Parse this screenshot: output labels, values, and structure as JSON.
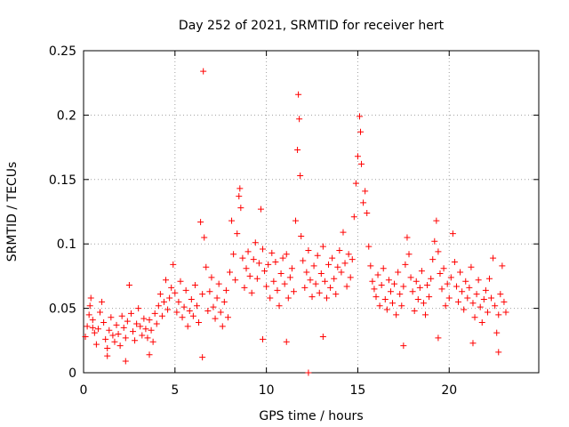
{
  "chart_data": {
    "type": "scatter",
    "title": "Day 252 of 2021, SRMTID for receiver hert",
    "xlabel": "GPS time / hours",
    "ylabel": "SRMTID / TECUs",
    "xlim": [
      0,
      24.9
    ],
    "ylim": [
      0,
      0.25
    ],
    "x_ticks": [
      0,
      5,
      10,
      15,
      20
    ],
    "x_tick_labels": [
      "0",
      "5",
      "10",
      "15",
      "20"
    ],
    "y_ticks": [
      0,
      0.05,
      0.1,
      0.15,
      0.2,
      0.25
    ],
    "y_tick_labels": [
      "0",
      "0.05",
      "0.1",
      "0.15",
      "0.2",
      "0.25"
    ],
    "grid": true,
    "marker": "plus",
    "color": "#ff0000",
    "series": [
      {
        "name": "SRMTID",
        "points": [
          [
            0.1,
            0.028
          ],
          [
            0.2,
            0.036
          ],
          [
            0.3,
            0.045
          ],
          [
            0.35,
            0.052
          ],
          [
            0.4,
            0.058
          ],
          [
            0.5,
            0.041
          ],
          [
            0.6,
            0.031
          ],
          [
            0.7,
            0.022
          ],
          [
            0.8,
            0.034
          ],
          [
            0.9,
            0.047
          ],
          [
            1.0,
            0.055
          ],
          [
            1.1,
            0.039
          ],
          [
            1.2,
            0.026
          ],
          [
            1.3,
            0.019
          ],
          [
            1.4,
            0.033
          ],
          [
            1.5,
            0.043
          ],
          [
            1.6,
            0.029
          ],
          [
            1.7,
            0.024
          ],
          [
            1.8,
            0.037
          ],
          [
            1.9,
            0.03
          ],
          [
            2.0,
            0.021
          ],
          [
            2.1,
            0.044
          ],
          [
            2.2,
            0.035
          ],
          [
            2.3,
            0.027
          ],
          [
            2.4,
            0.04
          ],
          [
            2.5,
            0.068
          ],
          [
            2.6,
            0.046
          ],
          [
            2.7,
            0.032
          ],
          [
            2.8,
            0.025
          ],
          [
            2.9,
            0.038
          ],
          [
            3.0,
            0.05
          ],
          [
            3.1,
            0.036
          ],
          [
            3.2,
            0.029
          ],
          [
            3.3,
            0.042
          ],
          [
            3.4,
            0.034
          ],
          [
            3.5,
            0.027
          ],
          [
            3.6,
            0.041
          ],
          [
            3.7,
            0.033
          ],
          [
            3.8,
            0.024
          ],
          [
            3.9,
            0.046
          ],
          [
            4.0,
            0.038
          ],
          [
            4.1,
            0.052
          ],
          [
            4.2,
            0.061
          ],
          [
            4.3,
            0.044
          ],
          [
            4.4,
            0.055
          ],
          [
            4.5,
            0.072
          ],
          [
            4.6,
            0.049
          ],
          [
            4.7,
            0.058
          ],
          [
            4.8,
            0.066
          ],
          [
            4.9,
            0.084
          ],
          [
            5.0,
            0.062
          ],
          [
            5.1,
            0.047
          ],
          [
            5.2,
            0.055
          ],
          [
            5.3,
            0.071
          ],
          [
            5.4,
            0.043
          ],
          [
            5.5,
            0.051
          ],
          [
            5.6,
            0.064
          ],
          [
            5.7,
            0.036
          ],
          [
            5.8,
            0.048
          ],
          [
            5.9,
            0.057
          ],
          [
            6.0,
            0.044
          ],
          [
            6.1,
            0.068
          ],
          [
            6.2,
            0.052
          ],
          [
            6.3,
            0.039
          ],
          [
            6.4,
            0.117
          ],
          [
            6.5,
            0.061
          ],
          [
            6.55,
            0.234
          ],
          [
            6.6,
            0.105
          ],
          [
            6.7,
            0.082
          ],
          [
            6.8,
            0.048
          ],
          [
            6.9,
            0.063
          ],
          [
            7.0,
            0.074
          ],
          [
            7.1,
            0.051
          ],
          [
            7.2,
            0.042
          ],
          [
            7.3,
            0.058
          ],
          [
            7.4,
            0.069
          ],
          [
            7.5,
            0.047
          ],
          [
            7.6,
            0.036
          ],
          [
            7.7,
            0.055
          ],
          [
            7.8,
            0.064
          ],
          [
            7.9,
            0.043
          ],
          [
            8.0,
            0.078
          ],
          [
            8.1,
            0.118
          ],
          [
            8.2,
            0.092
          ],
          [
            8.3,
            0.072
          ],
          [
            8.4,
            0.108
          ],
          [
            8.5,
            0.137
          ],
          [
            8.55,
            0.143
          ],
          [
            8.6,
            0.128
          ],
          [
            8.7,
            0.089
          ],
          [
            8.8,
            0.066
          ],
          [
            8.9,
            0.081
          ],
          [
            9.0,
            0.094
          ],
          [
            9.1,
            0.075
          ],
          [
            9.2,
            0.062
          ],
          [
            9.3,
            0.088
          ],
          [
            9.4,
            0.101
          ],
          [
            9.5,
            0.073
          ],
          [
            9.6,
            0.085
          ],
          [
            9.7,
            0.127
          ],
          [
            9.8,
            0.096
          ],
          [
            9.9,
            0.079
          ],
          [
            10.0,
            0.067
          ],
          [
            10.1,
            0.084
          ],
          [
            10.2,
            0.058
          ],
          [
            10.3,
            0.093
          ],
          [
            10.4,
            0.071
          ],
          [
            10.5,
            0.086
          ],
          [
            10.6,
            0.064
          ],
          [
            10.7,
            0.052
          ],
          [
            10.8,
            0.077
          ],
          [
            10.9,
            0.089
          ],
          [
            11.0,
            0.069
          ],
          [
            11.1,
            0.092
          ],
          [
            11.2,
            0.058
          ],
          [
            11.3,
            0.074
          ],
          [
            11.4,
            0.081
          ],
          [
            11.5,
            0.063
          ],
          [
            11.6,
            0.118
          ],
          [
            11.7,
            0.173
          ],
          [
            11.75,
            0.216
          ],
          [
            11.8,
            0.197
          ],
          [
            11.85,
            0.153
          ],
          [
            11.9,
            0.106
          ],
          [
            12.0,
            0.087
          ],
          [
            12.1,
            0.066
          ],
          [
            12.2,
            0.078
          ],
          [
            12.3,
            0.095
          ],
          [
            12.4,
            0.072
          ],
          [
            12.5,
            0.059
          ],
          [
            12.6,
            0.083
          ],
          [
            12.7,
            0.069
          ],
          [
            12.8,
            0.091
          ],
          [
            12.9,
            0.062
          ],
          [
            13.0,
            0.077
          ],
          [
            13.1,
            0.098
          ],
          [
            13.2,
            0.071
          ],
          [
            13.3,
            0.058
          ],
          [
            13.4,
            0.084
          ],
          [
            13.5,
            0.066
          ],
          [
            13.6,
            0.089
          ],
          [
            13.7,
            0.073
          ],
          [
            13.8,
            0.061
          ],
          [
            13.9,
            0.082
          ],
          [
            14.0,
            0.095
          ],
          [
            14.1,
            0.078
          ],
          [
            14.2,
            0.109
          ],
          [
            14.3,
            0.085
          ],
          [
            14.4,
            0.067
          ],
          [
            14.5,
            0.092
          ],
          [
            14.6,
            0.074
          ],
          [
            14.7,
            0.088
          ],
          [
            14.8,
            0.121
          ],
          [
            14.9,
            0.147
          ],
          [
            15.0,
            0.168
          ],
          [
            15.1,
            0.199
          ],
          [
            15.15,
            0.187
          ],
          [
            15.2,
            0.162
          ],
          [
            15.3,
            0.132
          ],
          [
            15.4,
            0.141
          ],
          [
            15.5,
            0.124
          ],
          [
            15.6,
            0.098
          ],
          [
            15.7,
            0.083
          ],
          [
            15.8,
            0.071
          ],
          [
            15.9,
            0.065
          ],
          [
            16.0,
            0.059
          ],
          [
            16.1,
            0.076
          ],
          [
            16.2,
            0.052
          ],
          [
            16.3,
            0.068
          ],
          [
            16.4,
            0.081
          ],
          [
            16.5,
            0.057
          ],
          [
            16.6,
            0.049
          ],
          [
            16.7,
            0.072
          ],
          [
            16.8,
            0.063
          ],
          [
            16.9,
            0.054
          ],
          [
            17.0,
            0.069
          ],
          [
            17.1,
            0.045
          ],
          [
            17.2,
            0.078
          ],
          [
            17.3,
            0.061
          ],
          [
            17.4,
            0.052
          ],
          [
            17.5,
            0.067
          ],
          [
            17.6,
            0.084
          ],
          [
            17.7,
            0.105
          ],
          [
            17.8,
            0.092
          ],
          [
            17.9,
            0.074
          ],
          [
            18.0,
            0.063
          ],
          [
            18.1,
            0.048
          ],
          [
            18.2,
            0.071
          ],
          [
            18.3,
            0.057
          ],
          [
            18.4,
            0.066
          ],
          [
            18.5,
            0.079
          ],
          [
            18.6,
            0.054
          ],
          [
            18.7,
            0.045
          ],
          [
            18.8,
            0.068
          ],
          [
            18.9,
            0.059
          ],
          [
            19.0,
            0.073
          ],
          [
            19.1,
            0.088
          ],
          [
            19.2,
            0.102
          ],
          [
            19.3,
            0.118
          ],
          [
            19.4,
            0.094
          ],
          [
            19.5,
            0.077
          ],
          [
            19.6,
            0.065
          ],
          [
            19.7,
            0.081
          ],
          [
            19.8,
            0.052
          ],
          [
            19.9,
            0.069
          ],
          [
            20.0,
            0.058
          ],
          [
            20.1,
            0.074
          ],
          [
            20.2,
            0.108
          ],
          [
            20.3,
            0.086
          ],
          [
            20.4,
            0.067
          ],
          [
            20.5,
            0.055
          ],
          [
            20.6,
            0.078
          ],
          [
            20.7,
            0.063
          ],
          [
            20.8,
            0.049
          ],
          [
            20.9,
            0.071
          ],
          [
            21.0,
            0.058
          ],
          [
            21.1,
            0.066
          ],
          [
            21.2,
            0.082
          ],
          [
            21.3,
            0.054
          ],
          [
            21.4,
            0.043
          ],
          [
            21.5,
            0.061
          ],
          [
            21.6,
            0.072
          ],
          [
            21.7,
            0.051
          ],
          [
            21.8,
            0.039
          ],
          [
            21.9,
            0.057
          ],
          [
            22.0,
            0.064
          ],
          [
            22.1,
            0.047
          ],
          [
            22.2,
            0.073
          ],
          [
            22.3,
            0.058
          ],
          [
            22.4,
            0.089
          ],
          [
            22.5,
            0.052
          ],
          [
            22.6,
            0.031
          ],
          [
            22.7,
            0.045
          ],
          [
            22.8,
            0.061
          ],
          [
            22.9,
            0.083
          ],
          [
            23.0,
            0.055
          ],
          [
            23.1,
            0.047
          ],
          [
            0.5,
            0.035
          ],
          [
            1.3,
            0.013
          ],
          [
            2.3,
            0.009
          ],
          [
            3.6,
            0.014
          ],
          [
            6.5,
            0.012
          ],
          [
            9.8,
            0.026
          ],
          [
            11.1,
            0.024
          ],
          [
            13.1,
            0.028
          ],
          [
            17.5,
            0.021
          ],
          [
            19.4,
            0.027
          ],
          [
            21.3,
            0.023
          ],
          [
            22.7,
            0.016
          ],
          [
            12.3,
            0.0
          ]
        ]
      }
    ]
  }
}
